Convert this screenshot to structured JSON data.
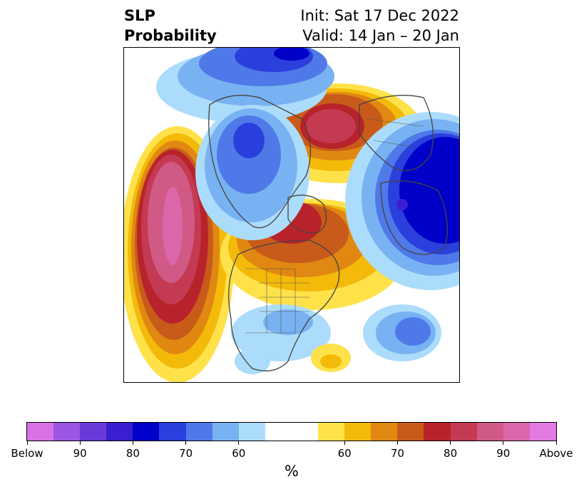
{
  "header": {
    "title_line1": "SLP",
    "title_line2": "Probability",
    "init_text": "Init: Sat 17 Dec 2022",
    "valid_text": "Valid: 14 Jan – 20 Jan"
  },
  "colorbar": {
    "unit": "%",
    "colors": [
      "#d871e6",
      "#9b56e3",
      "#6a3ad8",
      "#3a1fd0",
      "#0000c8",
      "#2a3fdc",
      "#4f79e8",
      "#79b2f2",
      "#acdcfb",
      "#ffffff",
      "#ffe24a",
      "#f4ba0a",
      "#e08812",
      "#c85b1a",
      "#b8232b",
      "#c43a52",
      "#d05a85",
      "#dc66aa",
      "#e27ae0"
    ],
    "tick_labels": [
      "Below",
      "90",
      "80",
      "70",
      "60",
      "60",
      "70",
      "80",
      "90",
      "Above"
    ]
  },
  "map": {
    "projection": "north-polar-stereographic",
    "variable": "SLP probability"
  }
}
